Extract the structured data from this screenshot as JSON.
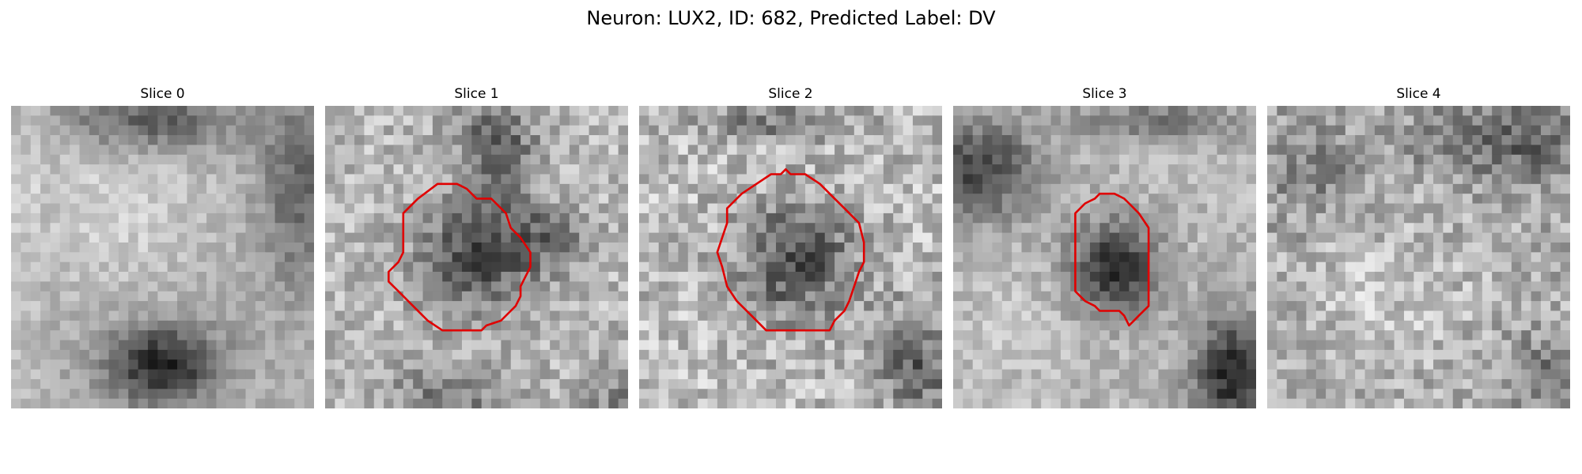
{
  "figure": {
    "title": "Neuron: LUX2, ID: 682, Predicted Label: DV"
  },
  "panels": [
    {
      "title": "Slice 0",
      "has_outline": false
    },
    {
      "title": "Slice 1",
      "has_outline": true
    },
    {
      "title": "Slice 2",
      "has_outline": true
    },
    {
      "title": "Slice 3",
      "has_outline": true
    },
    {
      "title": "Slice 4",
      "has_outline": false
    }
  ],
  "colors": {
    "background": "#ffffff",
    "outline": "#e00000",
    "colormap": "gray"
  }
}
